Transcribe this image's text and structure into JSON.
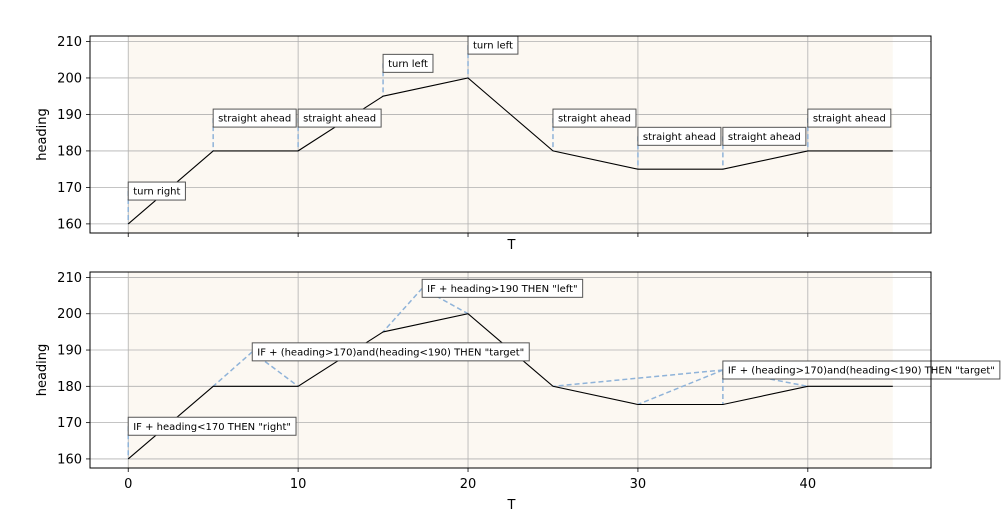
{
  "chart_data": [
    {
      "type": "line",
      "xlabel": "T",
      "ylabel": "heading",
      "xlim": [
        -2.25,
        47.25
      ],
      "ylim": [
        157.5,
        211.5
      ],
      "xticks": [
        0,
        10,
        20,
        30,
        40
      ],
      "yticks": [
        160,
        170,
        180,
        190,
        200,
        210
      ],
      "x_tick_labels_visible": false,
      "grid": true,
      "shaded_range": {
        "x": [
          0,
          45
        ],
        "color": "#fcf8f2"
      },
      "series": [
        {
          "x": [
            0,
            5,
            10,
            15,
            20,
            25,
            30,
            35,
            40,
            45
          ],
          "y": [
            160,
            180,
            180,
            195,
            200,
            180,
            175,
            175,
            180,
            180
          ],
          "color": "#000000"
        }
      ],
      "annotations": [
        {
          "text": "turn right",
          "point": [
            0,
            160
          ],
          "label_at": [
            0,
            169
          ]
        },
        {
          "text": "straight ahead",
          "point": [
            5,
            180
          ],
          "label_at": [
            5,
            189
          ]
        },
        {
          "text": "straight ahead",
          "point": [
            10,
            180
          ],
          "label_at": [
            10,
            189
          ]
        },
        {
          "text": "turn left",
          "point": [
            15,
            195
          ],
          "label_at": [
            15,
            204
          ]
        },
        {
          "text": "turn left",
          "point": [
            20,
            200
          ],
          "label_at": [
            20,
            209
          ]
        },
        {
          "text": "straight ahead",
          "point": [
            25,
            180
          ],
          "label_at": [
            25,
            189
          ]
        },
        {
          "text": "straight ahead",
          "point": [
            30,
            175
          ],
          "label_at": [
            30,
            184
          ]
        },
        {
          "text": "straight ahead",
          "point": [
            35,
            175
          ],
          "label_at": [
            35,
            184
          ]
        },
        {
          "text": "straight ahead",
          "point": [
            40,
            180
          ],
          "label_at": [
            40,
            189
          ]
        }
      ]
    },
    {
      "type": "line",
      "xlabel": "T",
      "ylabel": "heading",
      "xlim": [
        -2.25,
        47.25
      ],
      "ylim": [
        157.5,
        211.5
      ],
      "xticks": [
        0,
        10,
        20,
        30,
        40
      ],
      "yticks": [
        160,
        170,
        180,
        190,
        200,
        210
      ],
      "x_tick_labels_visible": true,
      "grid": true,
      "shaded_range": {
        "x": [
          0,
          45
        ],
        "color": "#fcf8f2"
      },
      "series": [
        {
          "x": [
            0,
            5,
            10,
            15,
            20,
            25,
            30,
            35,
            40,
            45
          ],
          "y": [
            160,
            180,
            180,
            195,
            200,
            180,
            175,
            175,
            180,
            180
          ],
          "color": "#000000"
        }
      ],
      "annotations": [
        {
          "text": "IF + heading<170 THEN \"right\"",
          "points": [
            [
              0,
              160
            ]
          ],
          "label_at": [
            0,
            169
          ]
        },
        {
          "text": "IF + (heading>170)and(heading<190) THEN \"target\"",
          "points": [
            [
              5,
              180
            ],
            [
              10,
              180
            ]
          ],
          "label_at": [
            7.3,
            189.5
          ]
        },
        {
          "text": "IF + heading>190 THEN \"left\"",
          "points": [
            [
              15,
              195
            ],
            [
              20,
              200
            ]
          ],
          "label_at": [
            17.3,
            207
          ]
        },
        {
          "text": "IF + (heading>170)and(heading<190) THEN \"target\"",
          "points": [
            [
              25,
              180
            ],
            [
              30,
              175
            ],
            [
              35,
              175
            ],
            [
              40,
              180
            ]
          ],
          "label_at": [
            35,
            184.5
          ]
        }
      ]
    }
  ],
  "colors": {
    "line": "#000000",
    "connector": "#8fb3d9",
    "grid": "#b0b0b0",
    "shade": "#fcf8f2",
    "box_edge": "#555555",
    "box_fill": "#ffffff"
  }
}
